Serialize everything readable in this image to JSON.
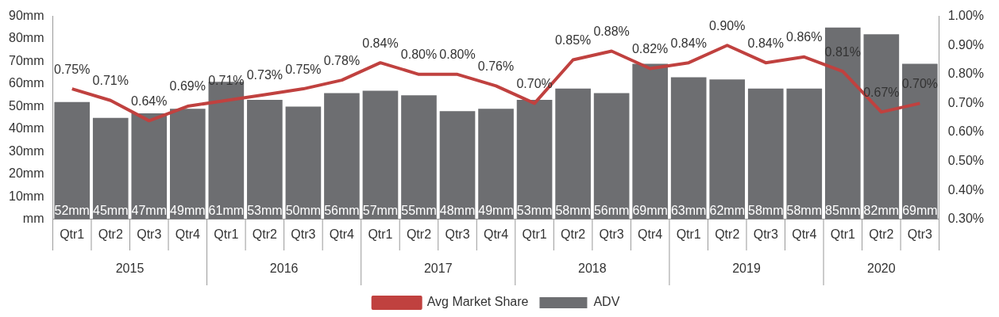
{
  "chart_data": {
    "type": "bar",
    "categories": [
      "Qtr1",
      "Qtr2",
      "Qtr3",
      "Qtr4",
      "Qtr1",
      "Qtr2",
      "Qtr3",
      "Qtr4",
      "Qtr1",
      "Qtr2",
      "Qtr3",
      "Qtr4",
      "Qtr1",
      "Qtr2",
      "Qtr3",
      "Qtr4",
      "Qtr1",
      "Qtr2",
      "Qtr3",
      "Qtr4",
      "Qtr1",
      "Qtr2",
      "Qtr3"
    ],
    "series": [
      {
        "name": "ADV",
        "color": "#6d6e71",
        "values": [
          52,
          45,
          47,
          49,
          61,
          53,
          50,
          56,
          57,
          55,
          48,
          49,
          53,
          58,
          56,
          69,
          63,
          62,
          58,
          58,
          85,
          82,
          69
        ],
        "value_labels": [
          "52mm",
          "45mm",
          "47mm",
          "49mm",
          "61mm",
          "53mm",
          "50mm",
          "56mm",
          "57mm",
          "55mm",
          "48mm",
          "49mm",
          "53mm",
          "58mm",
          "56mm",
          "69mm",
          "63mm",
          "62mm",
          "58mm",
          "58mm",
          "85mm",
          "82mm",
          "69mm"
        ]
      },
      {
        "name": "Avg Market Share",
        "type": "line",
        "axis": "y2",
        "color": "#c0413f",
        "marker": "none",
        "values": [
          0.75,
          0.71,
          0.64,
          0.69,
          0.71,
          0.73,
          0.75,
          0.78,
          0.84,
          0.8,
          0.8,
          0.76,
          0.7,
          0.85,
          0.88,
          0.82,
          0.84,
          0.9,
          0.84,
          0.86,
          0.81,
          0.67,
          0.7
        ],
        "value_labels": [
          "0.75%",
          "0.71%",
          "0.64%",
          "0.69%",
          "0.71%",
          "0.73%",
          "0.75%",
          "0.78%",
          "0.84%",
          "0.80%",
          "0.80%",
          "0.76%",
          "0.70%",
          "0.85%",
          "0.88%",
          "0.82%",
          "0.84%",
          "0.90%",
          "0.84%",
          "0.86%",
          "0.81%",
          "0.67%",
          "0.70%"
        ]
      }
    ],
    "ylim": [
      0,
      90
    ],
    "yticks": [
      {
        "value": 0,
        "label": "mm"
      },
      {
        "value": 10,
        "label": "10mm"
      },
      {
        "value": 20,
        "label": "20mm"
      },
      {
        "value": 30,
        "label": "30mm"
      },
      {
        "value": 40,
        "label": "40mm"
      },
      {
        "value": 50,
        "label": "50mm"
      },
      {
        "value": 60,
        "label": "60mm"
      },
      {
        "value": 70,
        "label": "70mm"
      },
      {
        "value": 80,
        "label": "80mm"
      },
      {
        "value": 90,
        "label": "90mm"
      }
    ],
    "y2lim": [
      0.3,
      1.0
    ],
    "y2ticks": [
      {
        "value": 0.3,
        "label": "0.30%"
      },
      {
        "value": 0.4,
        "label": "0.40%"
      },
      {
        "value": 0.5,
        "label": "0.50%"
      },
      {
        "value": 0.6,
        "label": "0.60%"
      },
      {
        "value": 0.7,
        "label": "0.70%"
      },
      {
        "value": 0.8,
        "label": "0.80%"
      },
      {
        "value": 0.9,
        "label": "0.90%"
      },
      {
        "value": 1.0,
        "label": "1.00%"
      }
    ],
    "annotations": [
      "2015",
      "2016",
      "2017",
      "2018",
      "2019",
      "2020"
    ],
    "grid": false,
    "legend": "bottom"
  }
}
